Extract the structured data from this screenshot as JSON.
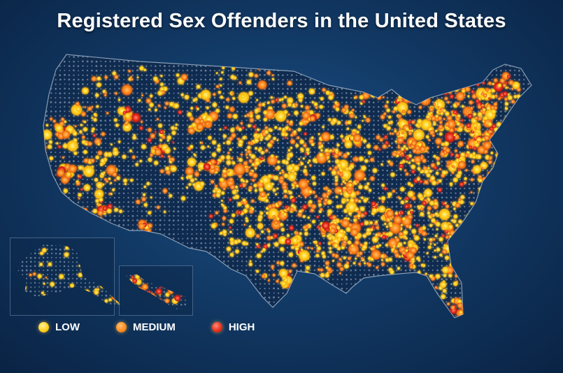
{
  "title": "Registered Sex Offenders in the United States",
  "legend": {
    "items": [
      {
        "label": "LOW",
        "color": "#ffd21a"
      },
      {
        "label": "MEDIUM",
        "color": "#ff8a1a"
      },
      {
        "label": "HIGH",
        "color": "#e82a1a"
      }
    ]
  },
  "colors": {
    "background": "#123a66",
    "grid_dot": "#7f95ad",
    "low": "#ffd21a",
    "medium": "#ff8a1a",
    "high": "#e82a1a"
  }
}
